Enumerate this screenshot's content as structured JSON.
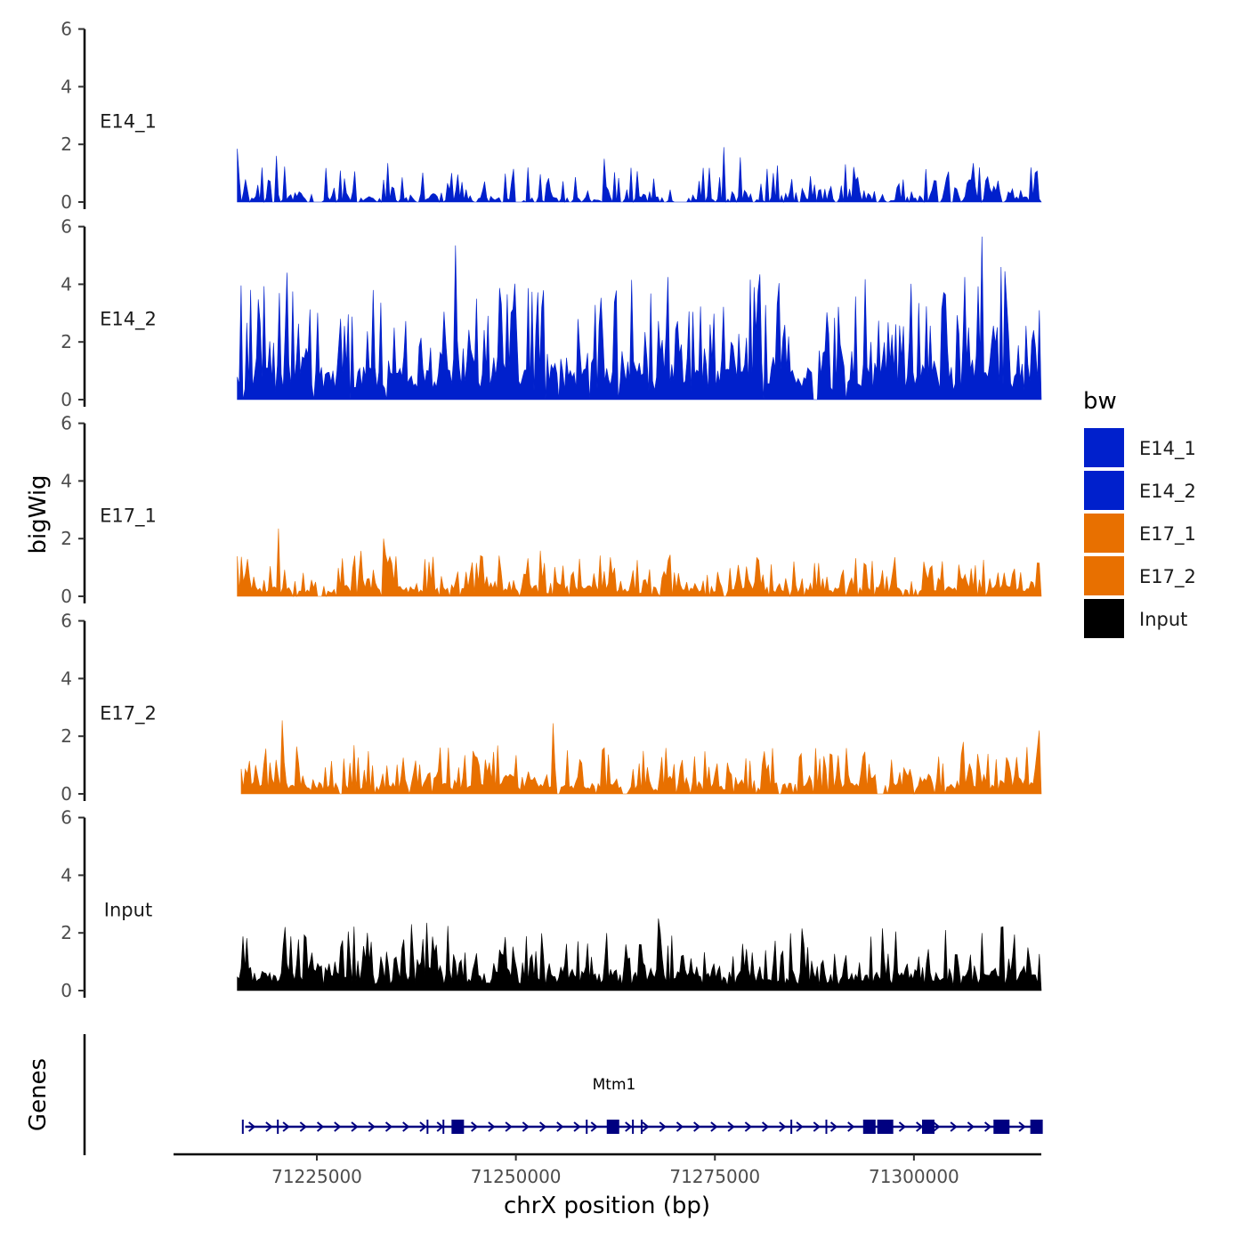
{
  "chart_data": {
    "type": "area",
    "subtype": "genome-browser coverage tracks",
    "ylabel": "bigWig",
    "xlabel": "chrX position (bp)",
    "xlim": [
      71207000,
      71316000
    ],
    "x_ticks": [
      71225000,
      71250000,
      71275000,
      71300000
    ],
    "x_tick_labels": [
      "71225000",
      "71250000",
      "71275000",
      "71300000"
    ],
    "ylim": [
      0,
      6
    ],
    "y_ticks": [
      0,
      2,
      4,
      6
    ],
    "y_tick_labels": [
      "0",
      "2",
      "4",
      "6"
    ],
    "data_x_range": [
      71215000,
      71316000
    ],
    "tracks": [
      {
        "name": "E14_1",
        "color": "#0020CC",
        "n_bins": 390,
        "seed": 11,
        "baseline": 0.12,
        "spikiness": 0.55,
        "zero_fraction": 0.22,
        "spikes": [
          {
            "x": 71215100,
            "y": 1.85
          },
          {
            "x": 71219800,
            "y": 1.6
          },
          {
            "x": 71234000,
            "y": 1.35
          },
          {
            "x": 71251500,
            "y": 1.2
          },
          {
            "x": 71261000,
            "y": 1.5
          },
          {
            "x": 71276000,
            "y": 1.9
          },
          {
            "x": 71278200,
            "y": 1.55
          },
          {
            "x": 71307500,
            "y": 1.35
          },
          {
            "x": 71314800,
            "y": 1.2
          }
        ],
        "gaps": [
          [
            71224800,
            71225700
          ],
          [
            71270200,
            71271200
          ],
          [
            71296500,
            71297000
          ]
        ]
      },
      {
        "name": "E14_2",
        "color": "#0020CC",
        "n_bins": 420,
        "seed": 23,
        "baseline": 0.9,
        "spikiness": 1.6,
        "zero_fraction": 0.02,
        "spikes": [
          {
            "x": 71221200,
            "y": 4.4
          },
          {
            "x": 71232000,
            "y": 3.8
          },
          {
            "x": 71242500,
            "y": 5.35
          },
          {
            "x": 71245000,
            "y": 3.5
          },
          {
            "x": 71264500,
            "y": 4.15
          },
          {
            "x": 71280000,
            "y": 3.9
          },
          {
            "x": 71306500,
            "y": 4.25
          },
          {
            "x": 71308500,
            "y": 5.65
          },
          {
            "x": 71311000,
            "y": 4.6
          },
          {
            "x": 71316000,
            "y": 3.1
          }
        ],
        "gaps": [
          [
            71287300,
            71288000
          ]
        ]
      },
      {
        "name": "E17_1",
        "color": "#E87000",
        "n_bins": 390,
        "seed": 37,
        "baseline": 0.25,
        "spikiness": 0.6,
        "zero_fraction": 0.05,
        "spikes": [
          {
            "x": 71220300,
            "y": 2.35
          },
          {
            "x": 71233500,
            "y": 2.0
          },
          {
            "x": 71253500,
            "y": 1.15
          },
          {
            "x": 71280500,
            "y": 1.25
          },
          {
            "x": 71305600,
            "y": 1.1
          },
          {
            "x": 71316000,
            "y": 1.15
          }
        ],
        "gaps": [
          [
            71225100,
            71225800
          ],
          [
            71276000,
            71276600
          ]
        ]
      },
      {
        "name": "E17_2",
        "color": "#E87000",
        "n_bins": 390,
        "seed": 53,
        "baseline": 0.3,
        "spikiness": 0.65,
        "zero_fraction": 0.04,
        "spikes": [
          {
            "x": 71220600,
            "y": 2.55
          },
          {
            "x": 71254600,
            "y": 2.45
          },
          {
            "x": 71306100,
            "y": 1.8
          },
          {
            "x": 71316000,
            "y": 2.2
          }
        ],
        "gaps": [
          [
            71227700,
            71228300
          ],
          [
            71263400,
            71264000
          ],
          [
            71295500,
            71296200
          ]
        ]
      },
      {
        "name": "Input",
        "color": "#000000",
        "n_bins": 420,
        "seed": 71,
        "baseline": 0.55,
        "spikiness": 0.75,
        "zero_fraction": 0.0,
        "spikes": [
          {
            "x": 71221000,
            "y": 2.2
          },
          {
            "x": 71229000,
            "y": 2.05
          },
          {
            "x": 71236900,
            "y": 2.3
          },
          {
            "x": 71238700,
            "y": 2.35
          },
          {
            "x": 71268000,
            "y": 2.5
          },
          {
            "x": 71286000,
            "y": 2.15
          },
          {
            "x": 71304000,
            "y": 2.1
          },
          {
            "x": 71311000,
            "y": 2.2
          }
        ],
        "gaps": []
      }
    ],
    "legend": {
      "title": "bw",
      "position": "right",
      "items": [
        {
          "label": "E14_1",
          "color": "#0020CC"
        },
        {
          "label": "E14_2",
          "color": "#0020CC"
        },
        {
          "label": "E17_1",
          "color": "#E87000"
        },
        {
          "label": "E17_2",
          "color": "#E87000"
        },
        {
          "label": "Input",
          "color": "#000000"
        }
      ]
    },
    "gene_track": {
      "ylabel": "Genes",
      "gene_name": "Mtm1",
      "color": "#000080",
      "strand": "+",
      "line_start": 71216000,
      "line_end": 71316000,
      "exons": [
        {
          "x": 71242700,
          "type": "coding"
        },
        {
          "x": 71262200,
          "type": "coding"
        },
        {
          "x": 71294400,
          "type": "coding"
        },
        {
          "x": 71296400,
          "type": "coding"
        },
        {
          "x": 71301800,
          "type": "coding"
        },
        {
          "x": 71311000,
          "type": "coding"
        },
        {
          "x": 71315400,
          "type": "coding"
        }
      ],
      "tick_marks": [
        71215700,
        71220100,
        71238900,
        71240900,
        71258900,
        71264700,
        71265800,
        71284600,
        71289000
      ]
    }
  }
}
